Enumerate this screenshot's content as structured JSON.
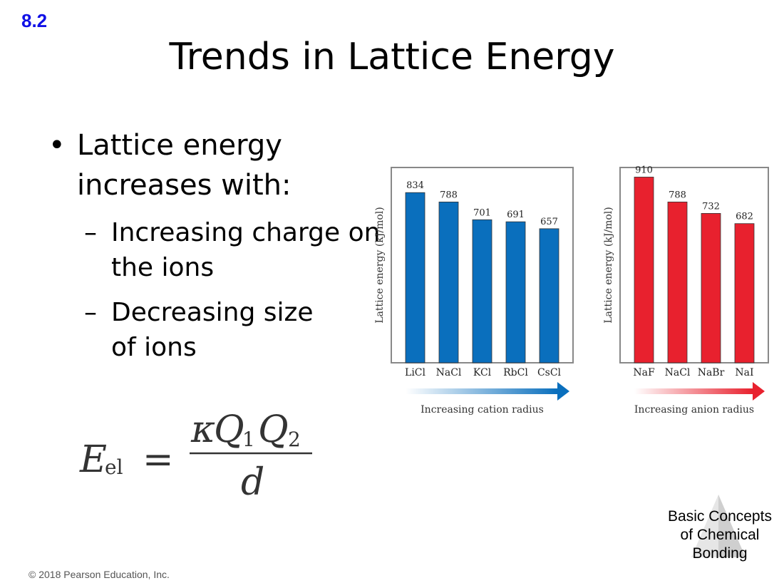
{
  "slide": {
    "section": "8.2",
    "title": "Trends in Lattice Energy",
    "bullet_line1": "Lattice energy",
    "bullet_line2": "increases with:",
    "sub1_line1": "Increasing charge on",
    "sub1_line2": "the ions",
    "sub2_line1": "Decreasing size",
    "sub2_line2": "of ions",
    "bullet_symbol": "•",
    "dash_symbol": "–",
    "footer": "© 2018 Pearson Education, Inc.",
    "tag_line1": "Basic Concepts",
    "tag_line2": "of Chemical",
    "tag_line3": "Bonding",
    "formula": {
      "lhs": "E",
      "lhs_sub": "el",
      "equals": "=",
      "kappa": "κ",
      "Q": "Q",
      "sub1": "1",
      "sub2": "2",
      "denominator": "d"
    }
  },
  "chart_data": [
    {
      "type": "bar",
      "categories": [
        "LiCl",
        "NaCl",
        "KCl",
        "RbCl",
        "CsCl"
      ],
      "values": [
        834,
        788,
        701,
        691,
        657
      ],
      "ylabel": "Lattice energy (kJ/mol)",
      "xlabel": "Increasing cation radius",
      "ylim": [
        0,
        950
      ],
      "color": "#0a6fbd"
    },
    {
      "type": "bar",
      "categories": [
        "NaF",
        "NaCl",
        "NaBr",
        "NaI"
      ],
      "values": [
        910,
        788,
        732,
        682
      ],
      "ylabel": "Lattice energy (kJ/mol)",
      "xlabel": "Increasing anion radius",
      "ylim": [
        0,
        950
      ],
      "color": "#e8212e"
    }
  ]
}
